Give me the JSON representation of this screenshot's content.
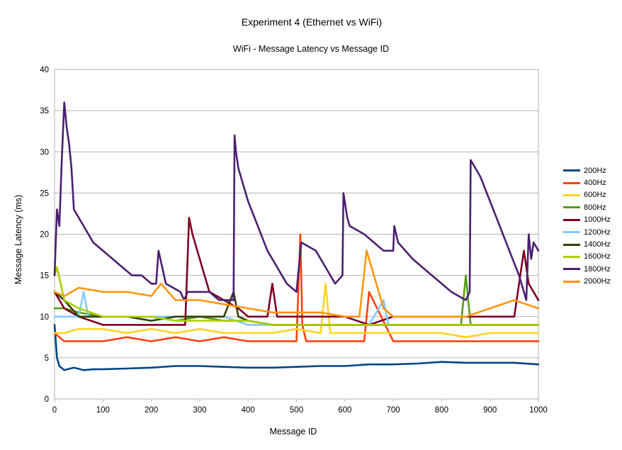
{
  "chart_data": {
    "type": "line",
    "title": "Experiment 4 (Ethernet vs WiFi)",
    "subtitle": "WiFi - Message Latency vs Message ID",
    "xlabel": "Message ID",
    "ylabel": "Message Latency (ms)",
    "xlim": [
      0,
      1000
    ],
    "ylim": [
      0,
      40
    ],
    "xticks": [
      0,
      100,
      200,
      300,
      400,
      500,
      600,
      700,
      800,
      900,
      1000
    ],
    "yticks": [
      0,
      5,
      10,
      15,
      20,
      25,
      30,
      35,
      40
    ],
    "grid": "horizontal",
    "legend_position": "right",
    "series": [
      {
        "name": "200Hz",
        "color": "#004586",
        "x": [
          0,
          5,
          10,
          20,
          40,
          60,
          80,
          100,
          150,
          200,
          250,
          300,
          350,
          400,
          450,
          500,
          550,
          600,
          650,
          700,
          750,
          800,
          850,
          900,
          950,
          1000
        ],
        "y": [
          9,
          5,
          4,
          3.5,
          3.8,
          3.5,
          3.6,
          3.6,
          3.7,
          3.8,
          4,
          4,
          3.9,
          3.8,
          3.8,
          3.9,
          4,
          4,
          4.2,
          4.2,
          4.3,
          4.5,
          4.4,
          4.4,
          4.4,
          4.2
        ]
      },
      {
        "name": "400Hz",
        "color": "#ff420e",
        "x": [
          0,
          20,
          50,
          100,
          150,
          200,
          250,
          300,
          350,
          400,
          450,
          500,
          508,
          512,
          520,
          550,
          600,
          640,
          650,
          700,
          750,
          800,
          850,
          900,
          950,
          1000
        ],
        "y": [
          8,
          7,
          7,
          7,
          7.5,
          7,
          7.5,
          7,
          7.5,
          7,
          7,
          7,
          20,
          9,
          7,
          7,
          7,
          7,
          13,
          7,
          7,
          7,
          7,
          7,
          7,
          7
        ]
      },
      {
        "name": "600Hz",
        "color": "#ffd320",
        "x": [
          0,
          20,
          50,
          100,
          150,
          200,
          250,
          300,
          350,
          400,
          450,
          500,
          550,
          560,
          570,
          600,
          650,
          700,
          750,
          800,
          850,
          900,
          950,
          1000
        ],
        "y": [
          8,
          8,
          8.5,
          8.5,
          8,
          8.5,
          8,
          8.5,
          8,
          8,
          8,
          8.5,
          8,
          14,
          8,
          8,
          8,
          8,
          8,
          8,
          7.5,
          8,
          8,
          8
        ]
      },
      {
        "name": "800Hz",
        "color": "#579d1c",
        "x": [
          0,
          20,
          50,
          100,
          150,
          200,
          250,
          300,
          350,
          400,
          450,
          500,
          550,
          600,
          650,
          700,
          750,
          800,
          840,
          850,
          860,
          900,
          950,
          1000
        ],
        "y": [
          11,
          11,
          10.5,
          10,
          10,
          10,
          9.5,
          10,
          9.5,
          9.5,
          9,
          9,
          9,
          9,
          9,
          9,
          9,
          9,
          9,
          15,
          9,
          9,
          9,
          9
        ]
      },
      {
        "name": "1000Hz",
        "color": "#7e0021",
        "x": [
          0,
          20,
          50,
          100,
          150,
          200,
          250,
          270,
          278,
          285,
          300,
          320,
          350,
          380,
          400,
          440,
          450,
          460,
          500,
          550,
          600,
          650,
          700,
          750,
          800,
          850,
          900,
          950,
          970,
          980,
          1000
        ],
        "y": [
          13,
          11,
          10,
          9,
          9,
          9,
          9,
          9,
          22,
          20,
          17,
          13,
          12,
          11,
          10,
          10,
          14,
          10,
          10,
          10,
          10,
          9,
          10,
          10,
          10,
          10,
          10,
          10,
          18,
          14,
          12
        ]
      },
      {
        "name": "1200Hz",
        "color": "#83caff",
        "x": [
          0,
          20,
          50,
          60,
          70,
          100,
          150,
          200,
          250,
          300,
          350,
          400,
          450,
          500,
          550,
          600,
          650,
          680,
          690,
          700,
          750,
          800,
          850,
          900,
          950,
          1000
        ],
        "y": [
          10,
          10,
          10,
          13,
          10,
          10,
          10,
          10,
          10,
          10,
          10,
          9,
          9,
          9,
          9,
          9,
          9,
          12,
          9,
          9,
          9,
          9,
          9,
          9,
          9,
          9
        ]
      },
      {
        "name": "1400Hz",
        "color": "#314004",
        "x": [
          0,
          20,
          50,
          100,
          150,
          200,
          250,
          300,
          350,
          370,
          380,
          400,
          450,
          500,
          550,
          600,
          650,
          700,
          750,
          800,
          850,
          900,
          950,
          1000
        ],
        "y": [
          13,
          12,
          10,
          10,
          10,
          9.5,
          10,
          10,
          10,
          13,
          10,
          9.5,
          9,
          9,
          9,
          9,
          9,
          9,
          9,
          9,
          9,
          9,
          9,
          9
        ]
      },
      {
        "name": "1600Hz",
        "color": "#aecf00",
        "x": [
          0,
          5,
          20,
          50,
          100,
          150,
          200,
          250,
          300,
          350,
          400,
          450,
          500,
          550,
          600,
          650,
          700,
          750,
          800,
          850,
          900,
          950,
          1000
        ],
        "y": [
          15,
          16,
          12,
          11,
          10,
          10,
          10,
          9.5,
          9.5,
          9.5,
          9.5,
          9,
          9,
          9,
          9,
          9,
          9,
          9,
          9,
          9,
          9,
          9,
          9
        ]
      },
      {
        "name": "1800Hz",
        "color": "#4b1f6f",
        "x": [
          0,
          5,
          10,
          15,
          20,
          25,
          30,
          35,
          40,
          60,
          80,
          100,
          120,
          140,
          160,
          180,
          200,
          210,
          215,
          230,
          260,
          268,
          275,
          280,
          300,
          320,
          340,
          360,
          370,
          372,
          375,
          380,
          400,
          420,
          440,
          460,
          480,
          500,
          510,
          540,
          560,
          580,
          595,
          597,
          605,
          610,
          640,
          680,
          700,
          702,
          710,
          740,
          780,
          800,
          820,
          850,
          858,
          860,
          880,
          900,
          920,
          940,
          960,
          975,
          980,
          985,
          990,
          1000
        ],
        "y": [
          15,
          23,
          21,
          29,
          36,
          33,
          31,
          28,
          23,
          21,
          19,
          18,
          17,
          16,
          15,
          15,
          14,
          14,
          18,
          14,
          13,
          12,
          13,
          13,
          13,
          13,
          12,
          12,
          12,
          32,
          30,
          28,
          24,
          21,
          18,
          16,
          14,
          13,
          19,
          18,
          16,
          14,
          15,
          25,
          22,
          21,
          20,
          18,
          18,
          21,
          19,
          17,
          15,
          14,
          13,
          12,
          13,
          29,
          27,
          24,
          21,
          18,
          15,
          12,
          20,
          17,
          19,
          18
        ]
      },
      {
        "name": "2000Hz",
        "color": "#ff950e",
        "x": [
          0,
          20,
          50,
          100,
          150,
          200,
          220,
          250,
          300,
          350,
          400,
          450,
          500,
          550,
          600,
          630,
          645,
          660,
          680,
          700,
          750,
          800,
          850,
          900,
          950,
          1000
        ],
        "y": [
          13,
          12.5,
          13.5,
          13,
          13,
          12.5,
          14,
          12,
          12,
          11.5,
          11,
          10.5,
          10.5,
          10.5,
          10,
          10,
          18,
          15,
          11,
          10,
          10,
          10,
          10,
          11,
          12,
          11
        ]
      }
    ]
  }
}
